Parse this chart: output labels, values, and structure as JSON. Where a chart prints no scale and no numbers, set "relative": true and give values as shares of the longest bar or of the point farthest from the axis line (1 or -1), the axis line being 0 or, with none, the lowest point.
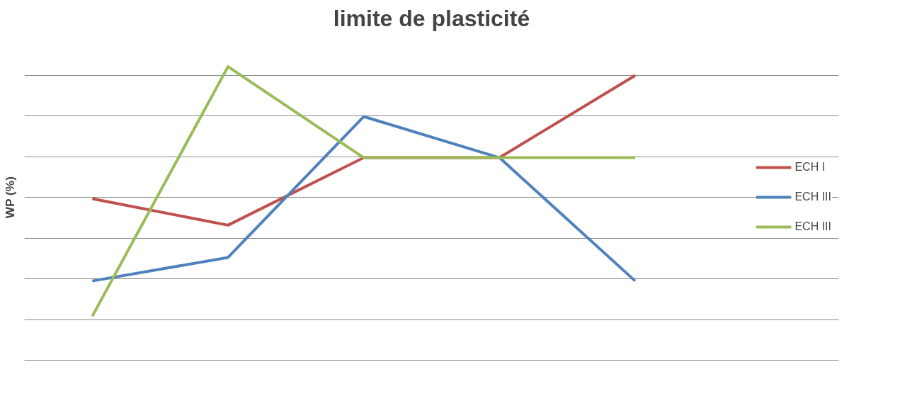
{
  "chart_data": {
    "type": "line",
    "title": "limite de plasticité",
    "ylabel": "WP (%)",
    "relative": true,
    "grid": "y",
    "legend": "right",
    "marker": "none",
    "line_style": "solid",
    "categories": [
      null,
      null,
      null,
      null,
      null
    ],
    "series": [
      {
        "name": "ECH I",
        "color": "#c0504d",
        "values": [
          0.55,
          0.46,
          0.69,
          0.69,
          0.97
        ]
      },
      {
        "name": "ECH III",
        "color": "#4f81bd",
        "values": [
          0.27,
          0.35,
          0.83,
          0.69,
          0.27
        ]
      },
      {
        "name": "ECH III",
        "color": "#9bbb59",
        "values": [
          0.15,
          1.0,
          0.69,
          0.69,
          0.69
        ]
      }
    ]
  }
}
